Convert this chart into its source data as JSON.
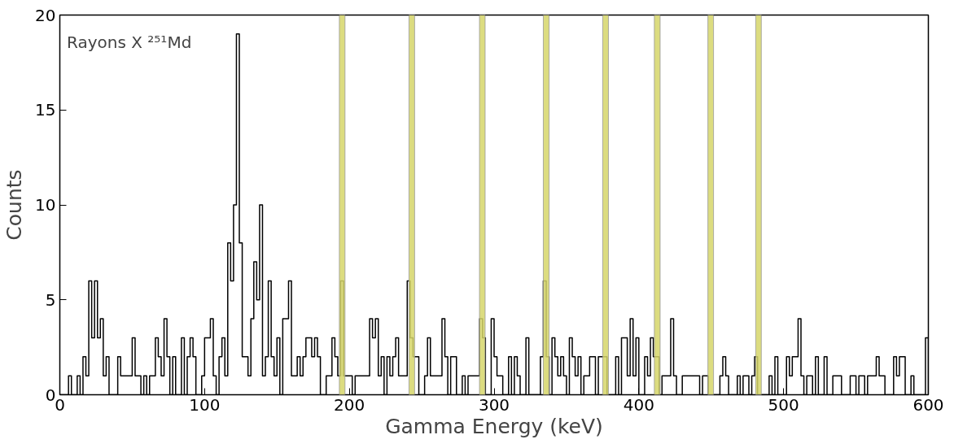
{
  "chart_data": {
    "type": "histogram",
    "xlabel": "Gamma Energy (keV)",
    "ylabel": "Counts",
    "annotations": [
      "Rayons X ²⁵¹Md"
    ],
    "color": "#000000",
    "bins": [
      0,
      2,
      4,
      6,
      8,
      10,
      12,
      14,
      16,
      18,
      20,
      22,
      24,
      26,
      28,
      30,
      32,
      34,
      36,
      38,
      40,
      42,
      44,
      46,
      48,
      50,
      52,
      54,
      56,
      58,
      60,
      62,
      64,
      66,
      68,
      70,
      72,
      74,
      76,
      78,
      80,
      82,
      84,
      86,
      88,
      90,
      92,
      94,
      96,
      98,
      100,
      102,
      104,
      106,
      108,
      110,
      112,
      114,
      116,
      118,
      120,
      122,
      124,
      126,
      128,
      130,
      132,
      134,
      136,
      138,
      140,
      142,
      144,
      146,
      148,
      150,
      152,
      154,
      156,
      158,
      160,
      162,
      164,
      166,
      168,
      170,
      172,
      174,
      176,
      178,
      180,
      182,
      184,
      186,
      188,
      190,
      192,
      194,
      196,
      198,
      200,
      202,
      204,
      206,
      208,
      210,
      212,
      214,
      216,
      218,
      220,
      222,
      224,
      226,
      228,
      230,
      232,
      234,
      236,
      238,
      240,
      242,
      244,
      246,
      248,
      250,
      252,
      254,
      256,
      258,
      260,
      262,
      264,
      266,
      268,
      270,
      272,
      274,
      276,
      278,
      280,
      282,
      284,
      286,
      288,
      290,
      292,
      294,
      296,
      298,
      300,
      302,
      304,
      306,
      308,
      310,
      312,
      314,
      316,
      318,
      320,
      322,
      324,
      326,
      328,
      330,
      332,
      334,
      336,
      338,
      340,
      342,
      344,
      346,
      348,
      350,
      352,
      354,
      356,
      358,
      360,
      362,
      364,
      366,
      368,
      370,
      372,
      374,
      376,
      378,
      380,
      382,
      384,
      386,
      388,
      390,
      392,
      394,
      396,
      398,
      400,
      402,
      404,
      406,
      408,
      410,
      412,
      414,
      416,
      418,
      420,
      422,
      424,
      426,
      428,
      430,
      432,
      434,
      436,
      438,
      440,
      442,
      444,
      446,
      448,
      450,
      452,
      454,
      456,
      458,
      460,
      462,
      464,
      466,
      468,
      470,
      472,
      474,
      476,
      478,
      480,
      482,
      484,
      486,
      488,
      490,
      492,
      494,
      496,
      498,
      500,
      502,
      504,
      506,
      508,
      510,
      512,
      514,
      516,
      518,
      520,
      522,
      524,
      526,
      528,
      530,
      532,
      534,
      536,
      538,
      540,
      542,
      544,
      546,
      548,
      550,
      552,
      554,
      556,
      558,
      560,
      562,
      564,
      566,
      568,
      570,
      572,
      574,
      576,
      578,
      580,
      582,
      584,
      586,
      588,
      590,
      592,
      594,
      596,
      598,
      600
    ],
    "values": [
      0,
      0,
      0,
      1,
      0,
      0,
      1,
      0,
      2,
      1,
      6,
      3,
      6,
      3,
      4,
      1,
      2,
      0,
      0,
      0,
      2,
      1,
      1,
      1,
      1,
      3,
      1,
      1,
      0,
      1,
      0,
      1,
      1,
      3,
      2,
      1,
      4,
      2,
      0,
      2,
      0,
      0,
      3,
      0,
      2,
      3,
      2,
      0,
      0,
      1,
      3,
      3,
      4,
      1,
      0,
      2,
      3,
      1,
      8,
      6,
      10,
      19,
      8,
      2,
      2,
      1,
      4,
      7,
      5,
      10,
      1,
      2,
      6,
      2,
      1,
      3,
      0,
      4,
      4,
      6,
      1,
      1,
      2,
      1,
      2,
      3,
      3,
      2,
      3,
      2,
      0,
      0,
      1,
      1,
      3,
      2,
      1,
      6,
      1,
      1,
      1,
      0,
      1,
      1,
      1,
      1,
      1,
      4,
      3,
      4,
      1,
      2,
      0,
      2,
      1,
      2,
      3,
      1,
      1,
      1,
      6,
      3,
      2,
      2,
      0,
      0,
      1,
      3,
      1,
      1,
      1,
      1,
      4,
      2,
      0,
      2,
      2,
      0,
      0,
      1,
      0,
      1,
      1,
      1,
      1,
      4,
      3,
      0,
      0,
      4,
      2,
      1,
      1,
      0,
      0,
      2,
      0,
      2,
      1,
      0,
      0,
      3,
      0,
      0,
      0,
      0,
      2,
      6,
      2,
      0,
      3,
      2,
      1,
      2,
      1,
      0,
      3,
      2,
      1,
      2,
      0,
      1,
      1,
      2,
      2,
      0,
      2,
      2,
      2,
      0,
      0,
      0,
      2,
      0,
      3,
      3,
      1,
      4,
      1,
      3,
      0,
      0,
      2,
      1,
      3,
      2,
      2,
      0,
      1,
      1,
      1,
      4,
      1,
      0,
      0,
      1,
      1,
      1,
      1,
      1,
      1,
      0,
      1,
      1,
      0,
      0,
      0,
      0,
      1,
      2,
      1,
      0,
      0,
      0,
      1,
      0,
      1,
      1,
      0,
      1,
      2,
      0,
      0,
      0,
      0,
      1,
      0,
      2,
      0,
      0,
      0,
      2,
      1,
      2,
      2,
      4,
      1,
      0,
      1,
      1,
      0,
      2,
      0,
      0,
      2,
      0,
      0,
      1,
      1,
      1,
      0,
      0,
      0,
      1,
      1,
      0,
      1,
      1,
      0,
      1,
      1,
      1,
      2,
      1,
      1,
      0,
      0,
      0,
      2,
      1,
      2,
      2,
      0,
      0,
      1,
      0,
      0,
      0,
      0,
      3
    ],
    "xlim": [
      0,
      600
    ],
    "xticks": [
      0,
      100,
      200,
      300,
      400,
      500,
      600
    ],
    "ylim": [
      0,
      20
    ],
    "yticks": [
      0,
      5,
      10,
      15,
      20
    ],
    "bands": [
      {
        "axis": "x",
        "from": 193.1,
        "to": 197,
        "color": "#d6d66a"
      },
      {
        "axis": "x",
        "from": 241.2,
        "to": 245.1,
        "color": "#d6d66a"
      },
      {
        "axis": "x",
        "from": 289.9,
        "to": 293.8,
        "color": "#d6d66a"
      },
      {
        "axis": "x",
        "from": 334,
        "to": 338,
        "color": "#d6d66a"
      },
      {
        "axis": "x",
        "from": 375,
        "to": 379,
        "color": "#d6d66a"
      },
      {
        "axis": "x",
        "from": 410.7,
        "to": 414.7,
        "color": "#d6d66a"
      },
      {
        "axis": "x",
        "from": 447.7,
        "to": 451.6,
        "color": "#d6d66a"
      },
      {
        "axis": "x",
        "from": 480.7,
        "to": 484.6,
        "color": "#d6d66a"
      }
    ]
  }
}
